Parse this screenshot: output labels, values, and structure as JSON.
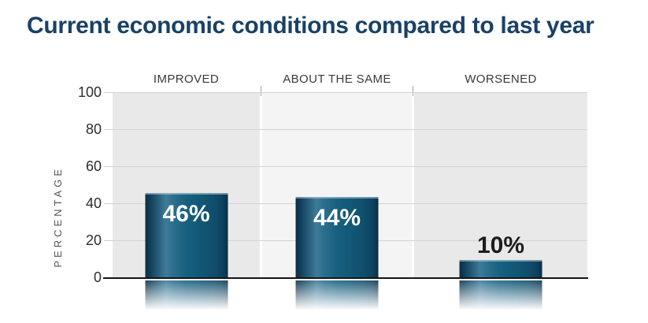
{
  "chart_data": {
    "type": "bar",
    "title": "Current economic conditions compared to last year",
    "categories": [
      "IMPROVED",
      "ABOUT THE SAME",
      "WORSENED"
    ],
    "values": [
      46,
      44,
      10
    ],
    "value_labels": [
      "46%",
      "44%",
      "10%"
    ],
    "value_label_placement": [
      "inside",
      "inside",
      "above"
    ],
    "ylabel": "PERCENTAGE",
    "yticks": [
      0,
      20,
      40,
      60,
      80,
      100
    ],
    "ylim": [
      0,
      100
    ],
    "grid": true,
    "legend": "none",
    "column_backgrounds": [
      "#e9e9e9",
      "#f4f4f4",
      "#e9e9e9"
    ]
  },
  "colors": {
    "title": "#1a4166",
    "bar_gradient_dark": "#0b2d43",
    "bar_gradient_light": "#3e7b9a",
    "bar_main": "#135a79",
    "axis_line": "#151515",
    "gridline": "#d3d3d3",
    "tick_label": "#2d2d2d",
    "category_label": "#3a3a3a",
    "ylabel_color": "#555555",
    "value_label_inside": "#ffffff",
    "value_label_outside": "#1c1c1c"
  }
}
